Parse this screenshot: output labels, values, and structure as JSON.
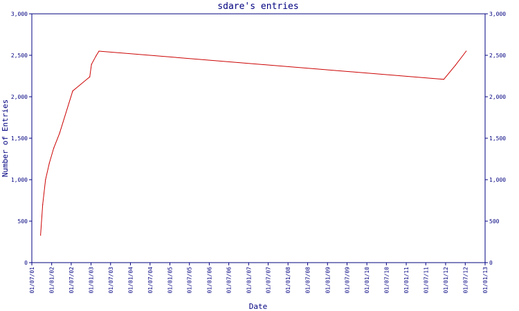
{
  "chart_data": {
    "type": "line",
    "title": "sdare's entries",
    "xlabel": "Date",
    "ylabel": "Number of Entries",
    "ylim": [
      0,
      3000
    ],
    "yticks": [
      0,
      500,
      1000,
      1500,
      2000,
      2500,
      3000
    ],
    "ytick_labels": [
      "0",
      "500",
      "1,000",
      "1,500",
      "2,000",
      "2,500",
      "3,000"
    ],
    "xlim": [
      "2001-07-01",
      "2013-01-01"
    ],
    "xticks": [
      "2001-07-01",
      "2002-01-01",
      "2002-07-01",
      "2003-01-01",
      "2003-07-01",
      "2004-01-01",
      "2004-07-01",
      "2005-01-01",
      "2005-07-01",
      "2006-01-01",
      "2006-07-01",
      "2007-01-01",
      "2007-07-01",
      "2008-01-01",
      "2008-07-01",
      "2009-01-01",
      "2009-07-01",
      "2010-01-01",
      "2010-07-01",
      "2011-01-01",
      "2011-07-01",
      "2012-01-01",
      "2012-07-01",
      "2013-01-01"
    ],
    "xtick_labels": [
      "01/07/01",
      "01/01/02",
      "01/07/02",
      "01/01/03",
      "01/07/03",
      "01/01/04",
      "01/07/04",
      "01/01/05",
      "01/07/05",
      "01/01/06",
      "01/07/06",
      "01/01/07",
      "01/07/07",
      "01/01/08",
      "01/07/08",
      "01/01/09",
      "01/07/09",
      "01/01/10",
      "01/07/10",
      "01/01/11",
      "01/07/11",
      "01/01/12",
      "01/07/12",
      "01/01/13"
    ],
    "grid": false,
    "series": [
      {
        "color": "#cc0000",
        "x": [
          "2001-09-20",
          "2001-10-10",
          "2001-11-05",
          "2001-12-10",
          "2002-01-20",
          "2002-03-15",
          "2002-07-15",
          "2002-12-20",
          "2003-01-05",
          "2003-02-15",
          "2003-03-15",
          "2011-12-15",
          "2012-04-01",
          "2012-07-10"
        ],
        "y": [
          330,
          700,
          1000,
          1200,
          1380,
          1560,
          2070,
          2240,
          2390,
          2490,
          2550,
          2210,
          2380,
          2550
        ]
      }
    ],
    "axis_color": "#000080",
    "text_color": "#000080",
    "line_color": "#cc0000"
  }
}
